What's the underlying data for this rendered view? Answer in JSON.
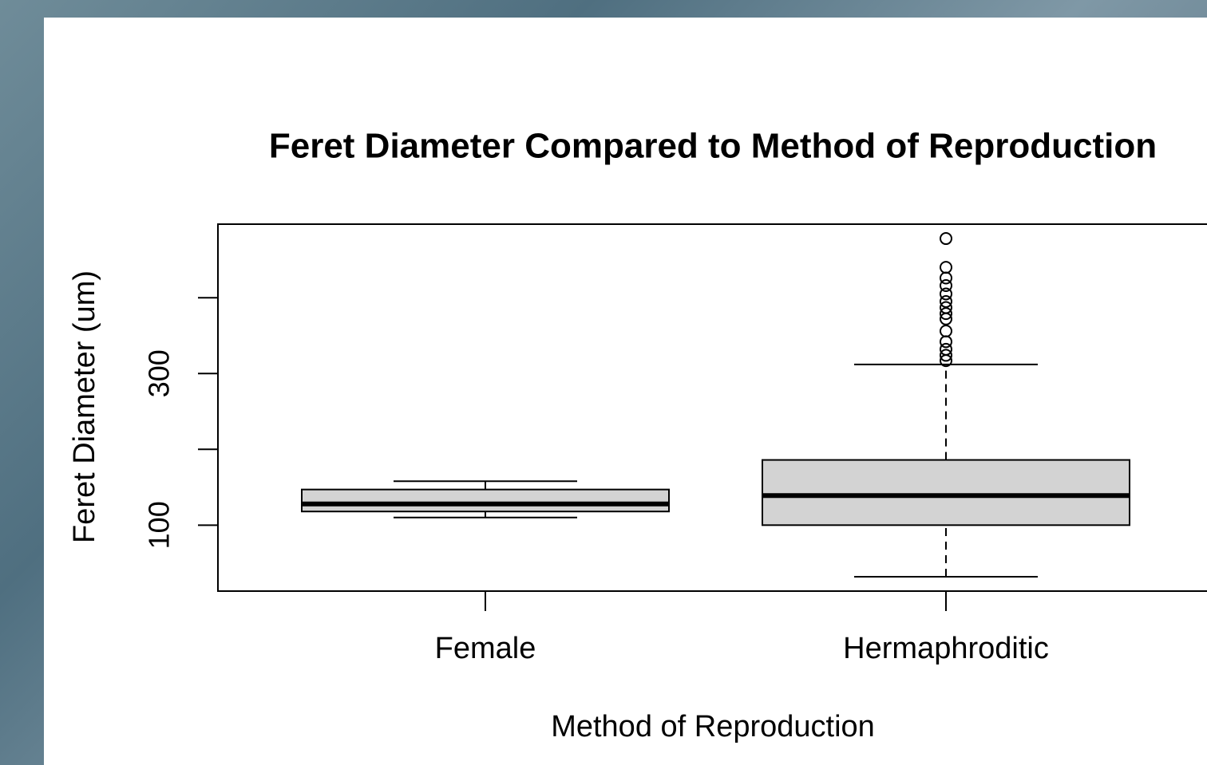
{
  "chart_data": {
    "type": "boxplot",
    "title": "Feret Diameter Compared to Method of Reproduction",
    "x_label": "Method of Reproduction",
    "y_label": "Feret Diameter (um)",
    "categories": [
      "Female",
      "Hermaphroditic"
    ],
    "boxes": [
      {
        "whisker_low": 110,
        "q1": 118,
        "median": 128,
        "q3": 147,
        "whisker_high": 158,
        "outliers": []
      },
      {
        "whisker_low": 32,
        "q1": 100,
        "median": 139,
        "q3": 186,
        "whisker_high": 312,
        "outliers": [
          478,
          440,
          426,
          416,
          405,
          395,
          387,
          379,
          372,
          356,
          342,
          332,
          324,
          317
        ]
      }
    ],
    "color": "#d3d3d3",
    "ylim": [
      13,
      497
    ],
    "yticks": [
      100,
      300
    ],
    "unlabeled_yticks": [
      200,
      400
    ]
  }
}
